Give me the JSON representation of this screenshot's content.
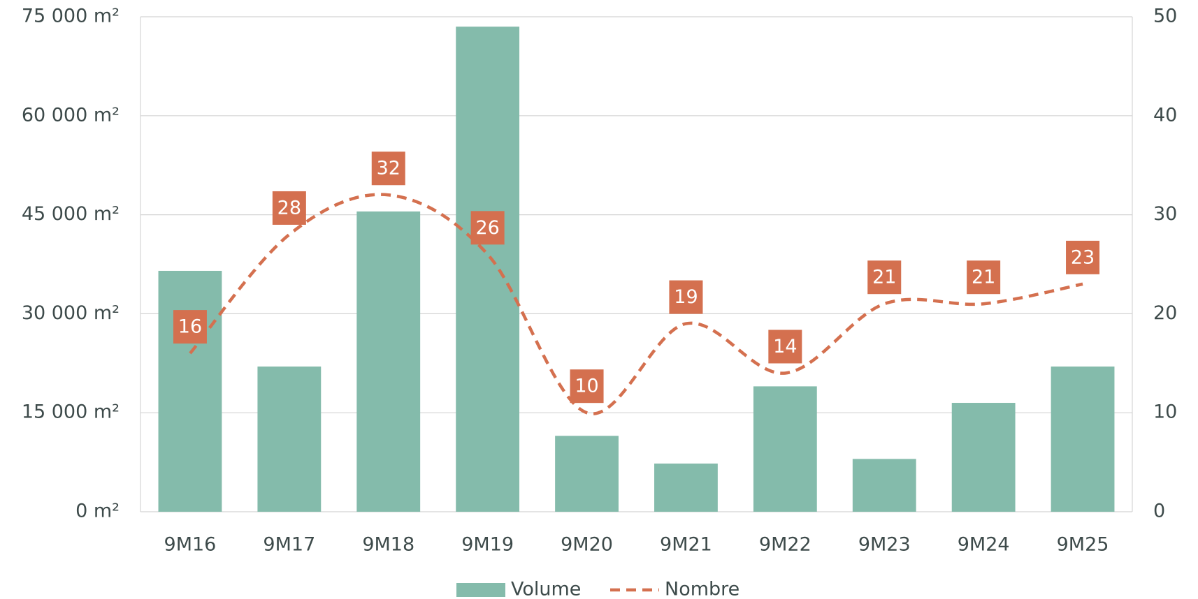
{
  "chart_data": {
    "type": "bar_line",
    "categories": [
      "9M16",
      "9M17",
      "9M18",
      "9M19",
      "9M20",
      "9M21",
      "9M22",
      "9M23",
      "9M24",
      "9M25"
    ],
    "series": [
      {
        "name": "Volume",
        "type": "bar",
        "color": "#84bbab",
        "values": [
          36500,
          22000,
          45500,
          73500,
          11500,
          7300,
          19000,
          8000,
          16500,
          22000
        ]
      },
      {
        "name": "Nombre",
        "type": "line",
        "axis": "y2",
        "color": "#d4704f",
        "dashed": true,
        "smooth": true,
        "values": [
          16,
          28,
          32,
          26,
          10,
          19,
          14,
          21,
          21,
          23
        ]
      }
    ],
    "ylim": [
      0,
      75000
    ],
    "yticks": [
      {
        "value": 0,
        "label": "0 m²"
      },
      {
        "value": 15000,
        "label": "15 000 m²"
      },
      {
        "value": 30000,
        "label": "30 000 m²"
      },
      {
        "value": 45000,
        "label": "45 000 m²"
      },
      {
        "value": 60000,
        "label": "60 000 m²"
      },
      {
        "value": 75000,
        "label": "75 000 m²"
      }
    ],
    "y2lim": [
      0,
      50
    ],
    "y2ticks": [
      0,
      10,
      20,
      30,
      40,
      50
    ],
    "grid": true,
    "legend": "bottom"
  }
}
